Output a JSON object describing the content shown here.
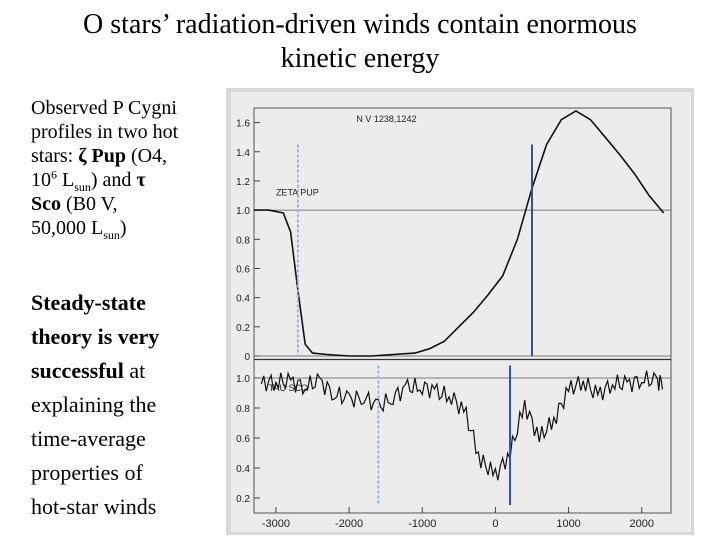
{
  "slide": {
    "title_line1": "O stars’ radiation-driven winds contain enormous",
    "title_line2": "kinetic energy"
  },
  "description": {
    "line1": "Observed P Cygni",
    "line2": "profiles in two hot",
    "line3_prefix": "stars: ",
    "zeta": "ζ",
    "pup": " Pup",
    "line3_suffix": " (O4,",
    "ten": "10",
    "exp": "6",
    "lsun_L": " L",
    "sun": "sun",
    "and": ") and ",
    "tau": "τ",
    "sco": "Sco",
    "sco_type": " (B0 V,",
    "fifty": "50,000 L",
    "close": ")"
  },
  "steady": {
    "bold1": "Steady-state",
    "bold2": "theory is very",
    "bold3": "successful",
    "rest1": " at",
    "rest2": "explaining the",
    "rest3": "time-average",
    "rest4": "properties of",
    "rest5": "hot-star winds"
  },
  "chart_data": {
    "type": "line",
    "xlabel_ticks": [
      "-3000",
      "-2000",
      "-1000",
      "0",
      "1000",
      "2000"
    ],
    "x_ticks_values": [
      -3000,
      -2000,
      -1000,
      0,
      1000,
      2000
    ],
    "xlim": [
      -3300,
      2400
    ],
    "top_panel": {
      "label": "ZETA PUP",
      "line_label": "N V 1238,1242",
      "y_ticks": [
        "1.6",
        "1.4",
        "1.2",
        "1.0",
        "0.8",
        "0.6",
        "0.4",
        "0.2",
        "0"
      ],
      "y_tick_values": [
        1.6,
        1.4,
        1.2,
        1.0,
        0.8,
        0.6,
        0.4,
        0.2,
        0.0
      ],
      "ylim": [
        0,
        1.7
      ],
      "x": [
        -3300,
        -3100,
        -2900,
        -2800,
        -2700,
        -2600,
        -2500,
        -2300,
        -2000,
        -1700,
        -1400,
        -1100,
        -900,
        -700,
        -500,
        -300,
        -100,
        100,
        300,
        500,
        700,
        900,
        1100,
        1300,
        1500,
        1700,
        1900,
        2100,
        2300
      ],
      "y": [
        1.0,
        1.0,
        0.98,
        0.85,
        0.45,
        0.08,
        0.02,
        0.01,
        0.0,
        0.0,
        0.01,
        0.02,
        0.05,
        0.1,
        0.2,
        0.3,
        0.42,
        0.55,
        0.8,
        1.15,
        1.45,
        1.62,
        1.68,
        1.62,
        1.5,
        1.38,
        1.25,
        1.1,
        0.98
      ]
    },
    "bottom_panel": {
      "label": "TAU SCO",
      "y_ticks": [
        "1.0",
        "0.8",
        "0.6",
        "0.4",
        "0.2"
      ],
      "y_tick_values": [
        1.0,
        0.8,
        0.6,
        0.4,
        0.2
      ],
      "ylim": [
        0.1,
        1.1
      ],
      "x": [
        -3200,
        -3000,
        -2800,
        -2600,
        -2400,
        -2200,
        -2000,
        -1800,
        -1600,
        -1400,
        -1200,
        -1000,
        -800,
        -600,
        -400,
        -200,
        0,
        200,
        400,
        600,
        800,
        1000,
        1200,
        1400,
        1600,
        1800,
        2000,
        2200,
        2300
      ],
      "y": [
        0.96,
        0.98,
        0.97,
        0.95,
        0.97,
        0.9,
        0.85,
        0.88,
        0.8,
        0.88,
        0.93,
        0.95,
        0.9,
        0.88,
        0.75,
        0.45,
        0.35,
        0.5,
        0.82,
        0.6,
        0.72,
        0.92,
        0.98,
        0.88,
        0.97,
        0.95,
        1.0,
        0.97,
        0.98
      ]
    },
    "marker_lines": [
      {
        "x": -2700,
        "color": "#8fb8e0",
        "panel": "top"
      },
      {
        "x": 500,
        "color": "#3050a0",
        "panel": "top"
      },
      {
        "x": -1600,
        "color": "#8fb8e0",
        "panel": "bottom"
      },
      {
        "x": 200,
        "color": "#3050a0",
        "panel": "bottom"
      }
    ]
  }
}
